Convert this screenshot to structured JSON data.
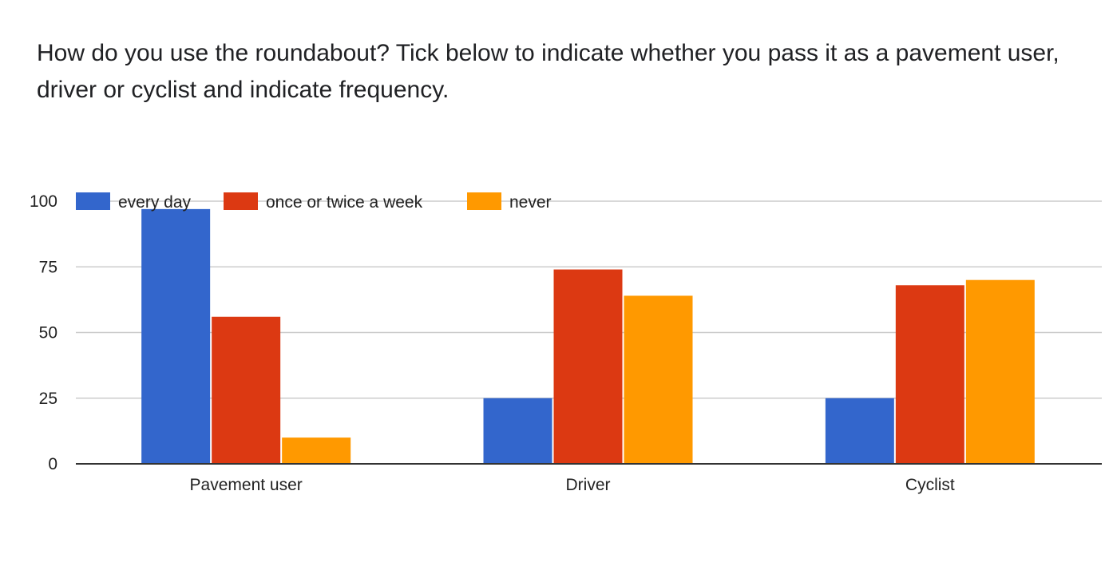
{
  "question": {
    "title": "How do you use the roundabout? Tick below to indicate whether you pass it as a pavement user, driver or cyclist and indicate frequency."
  },
  "chart_data": {
    "type": "bar",
    "title": "",
    "xlabel": "",
    "ylabel": "",
    "categories": [
      "Pavement user",
      "Driver",
      "Cyclist"
    ],
    "series": [
      {
        "name": "every day",
        "values": [
          97,
          25,
          25
        ],
        "color": "#3366cc"
      },
      {
        "name": "once or twice a week",
        "values": [
          56,
          74,
          68
        ],
        "color": "#dc3912"
      },
      {
        "name": "never",
        "values": [
          10,
          64,
          70
        ],
        "color": "#ff9900"
      }
    ],
    "ylim": [
      0,
      100
    ],
    "yticks": [
      0,
      25,
      50,
      75,
      100
    ],
    "grid": true,
    "legend": "top-left"
  }
}
